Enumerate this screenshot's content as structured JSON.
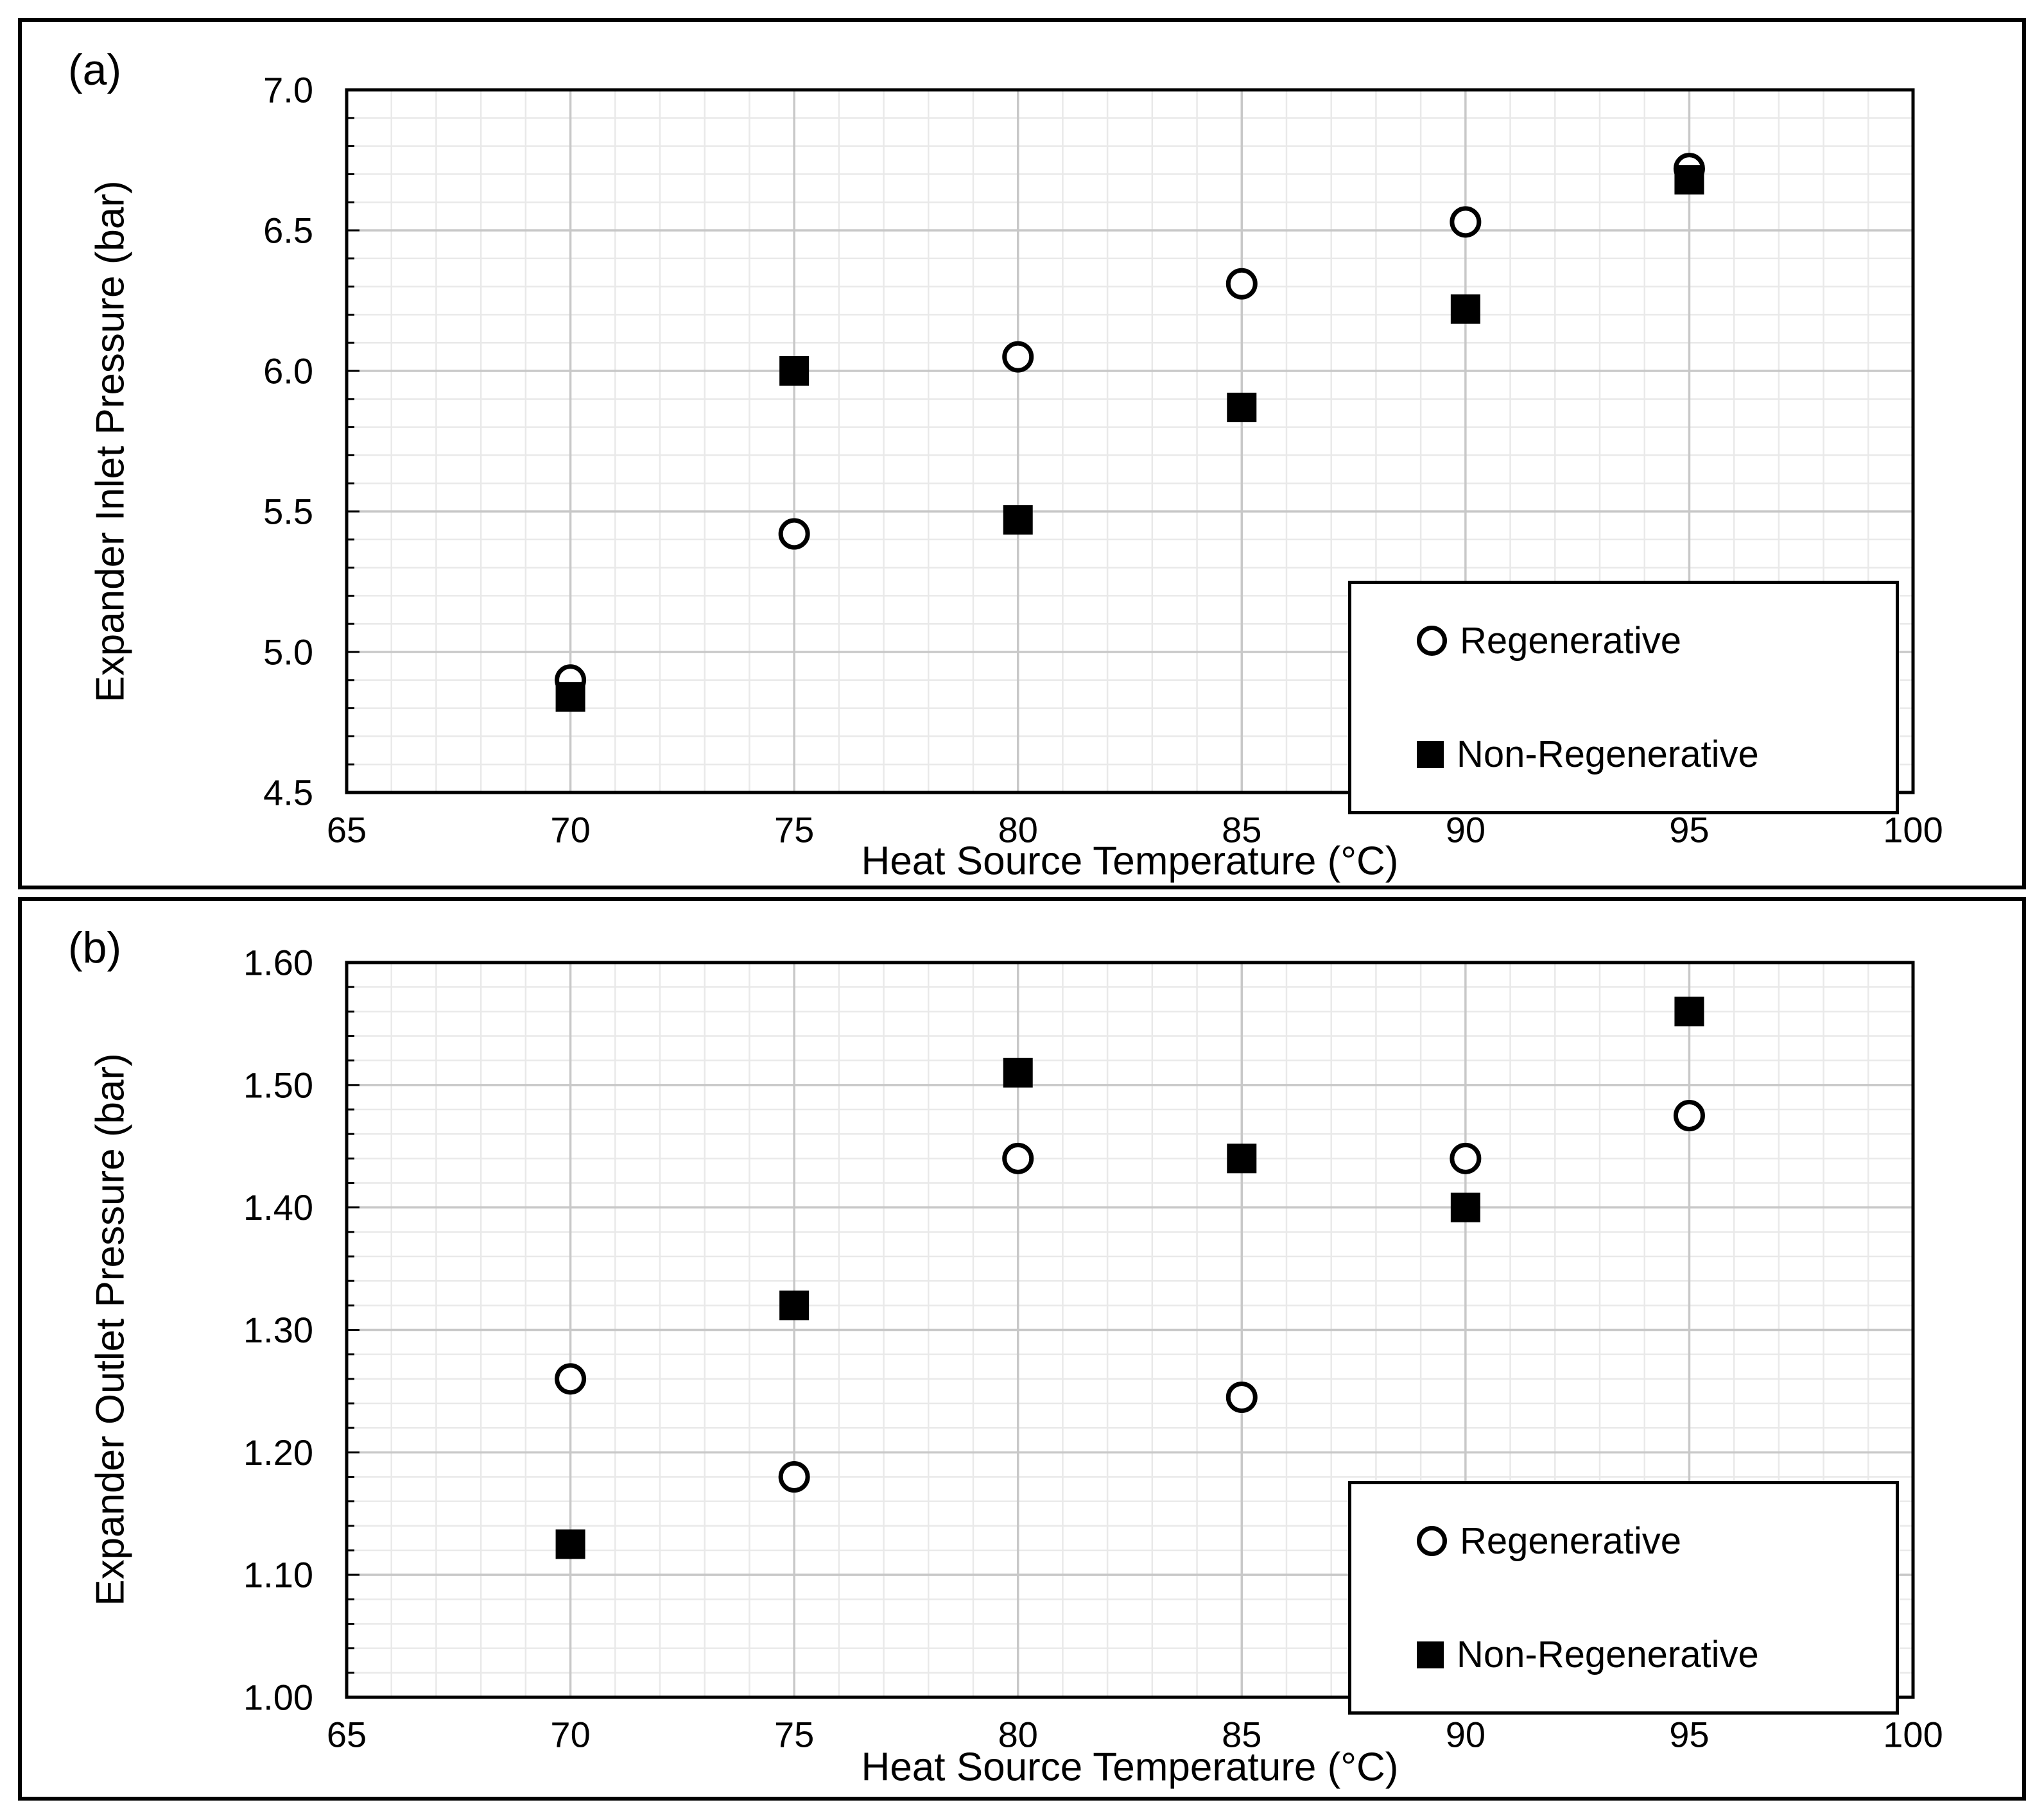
{
  "chart_data": [
    {
      "type": "scatter",
      "panel_label": "(a)",
      "xlabel": "Heat Source Temperature (°C)",
      "ylabel": "Expander Inlet Pressure (bar)",
      "xlim": [
        65,
        100
      ],
      "ylim": [
        4.5,
        7.0
      ],
      "x_major": 5,
      "x_minor": 1,
      "y_major": 0.5,
      "y_minor": 0.1,
      "x_ticks": [
        "65",
        "70",
        "75",
        "80",
        "85",
        "90",
        "95",
        "100"
      ],
      "y_ticks": [
        "4.5",
        "5.0",
        "5.5",
        "6.0",
        "6.5",
        "7.0"
      ],
      "grid": true,
      "legend_position": "bottom-right",
      "series": [
        {
          "name": "Regenerative",
          "marker": "circle",
          "points": [
            [
              70,
              4.9
            ],
            [
              75,
              5.42
            ],
            [
              80,
              6.05
            ],
            [
              85,
              6.31
            ],
            [
              90,
              6.53
            ],
            [
              95,
              6.72
            ]
          ]
        },
        {
          "name": "Non-Regenerative",
          "marker": "square",
          "points": [
            [
              70,
              4.84
            ],
            [
              75,
              6.0
            ],
            [
              80,
              5.47
            ],
            [
              85,
              5.87
            ],
            [
              90,
              6.22
            ],
            [
              95,
              6.68
            ]
          ]
        }
      ]
    },
    {
      "type": "scatter",
      "panel_label": "(b)",
      "xlabel": "Heat Source Temperature (°C)",
      "ylabel": "Expander Outlet Pressure (bar)",
      "xlim": [
        65,
        100
      ],
      "ylim": [
        1.0,
        1.6
      ],
      "x_major": 5,
      "x_minor": 1,
      "y_major": 0.1,
      "y_minor": 0.02,
      "x_ticks": [
        "65",
        "70",
        "75",
        "80",
        "85",
        "90",
        "95",
        "100"
      ],
      "y_ticks": [
        "1.00",
        "1.10",
        "1.20",
        "1.30",
        "1.40",
        "1.50",
        "1.60"
      ],
      "grid": true,
      "legend_position": "bottom-right",
      "series": [
        {
          "name": "Regenerative",
          "marker": "circle",
          "points": [
            [
              70,
              1.26
            ],
            [
              75,
              1.18
            ],
            [
              80,
              1.44
            ],
            [
              85,
              1.245
            ],
            [
              90,
              1.44
            ],
            [
              95,
              1.475
            ]
          ]
        },
        {
          "name": "Non-Regenerative",
          "marker": "square",
          "points": [
            [
              70,
              1.125
            ],
            [
              75,
              1.32
            ],
            [
              80,
              1.51
            ],
            [
              85,
              1.44
            ],
            [
              90,
              1.4
            ],
            [
              95,
              1.56
            ]
          ]
        }
      ]
    }
  ],
  "colors": {
    "marker": "#000000",
    "marker_fill_open": "#ffffff",
    "grid_minor": "#e9e9e9",
    "grid_major": "#c8c8c8",
    "axis": "#000000",
    "background": "#ffffff"
  }
}
